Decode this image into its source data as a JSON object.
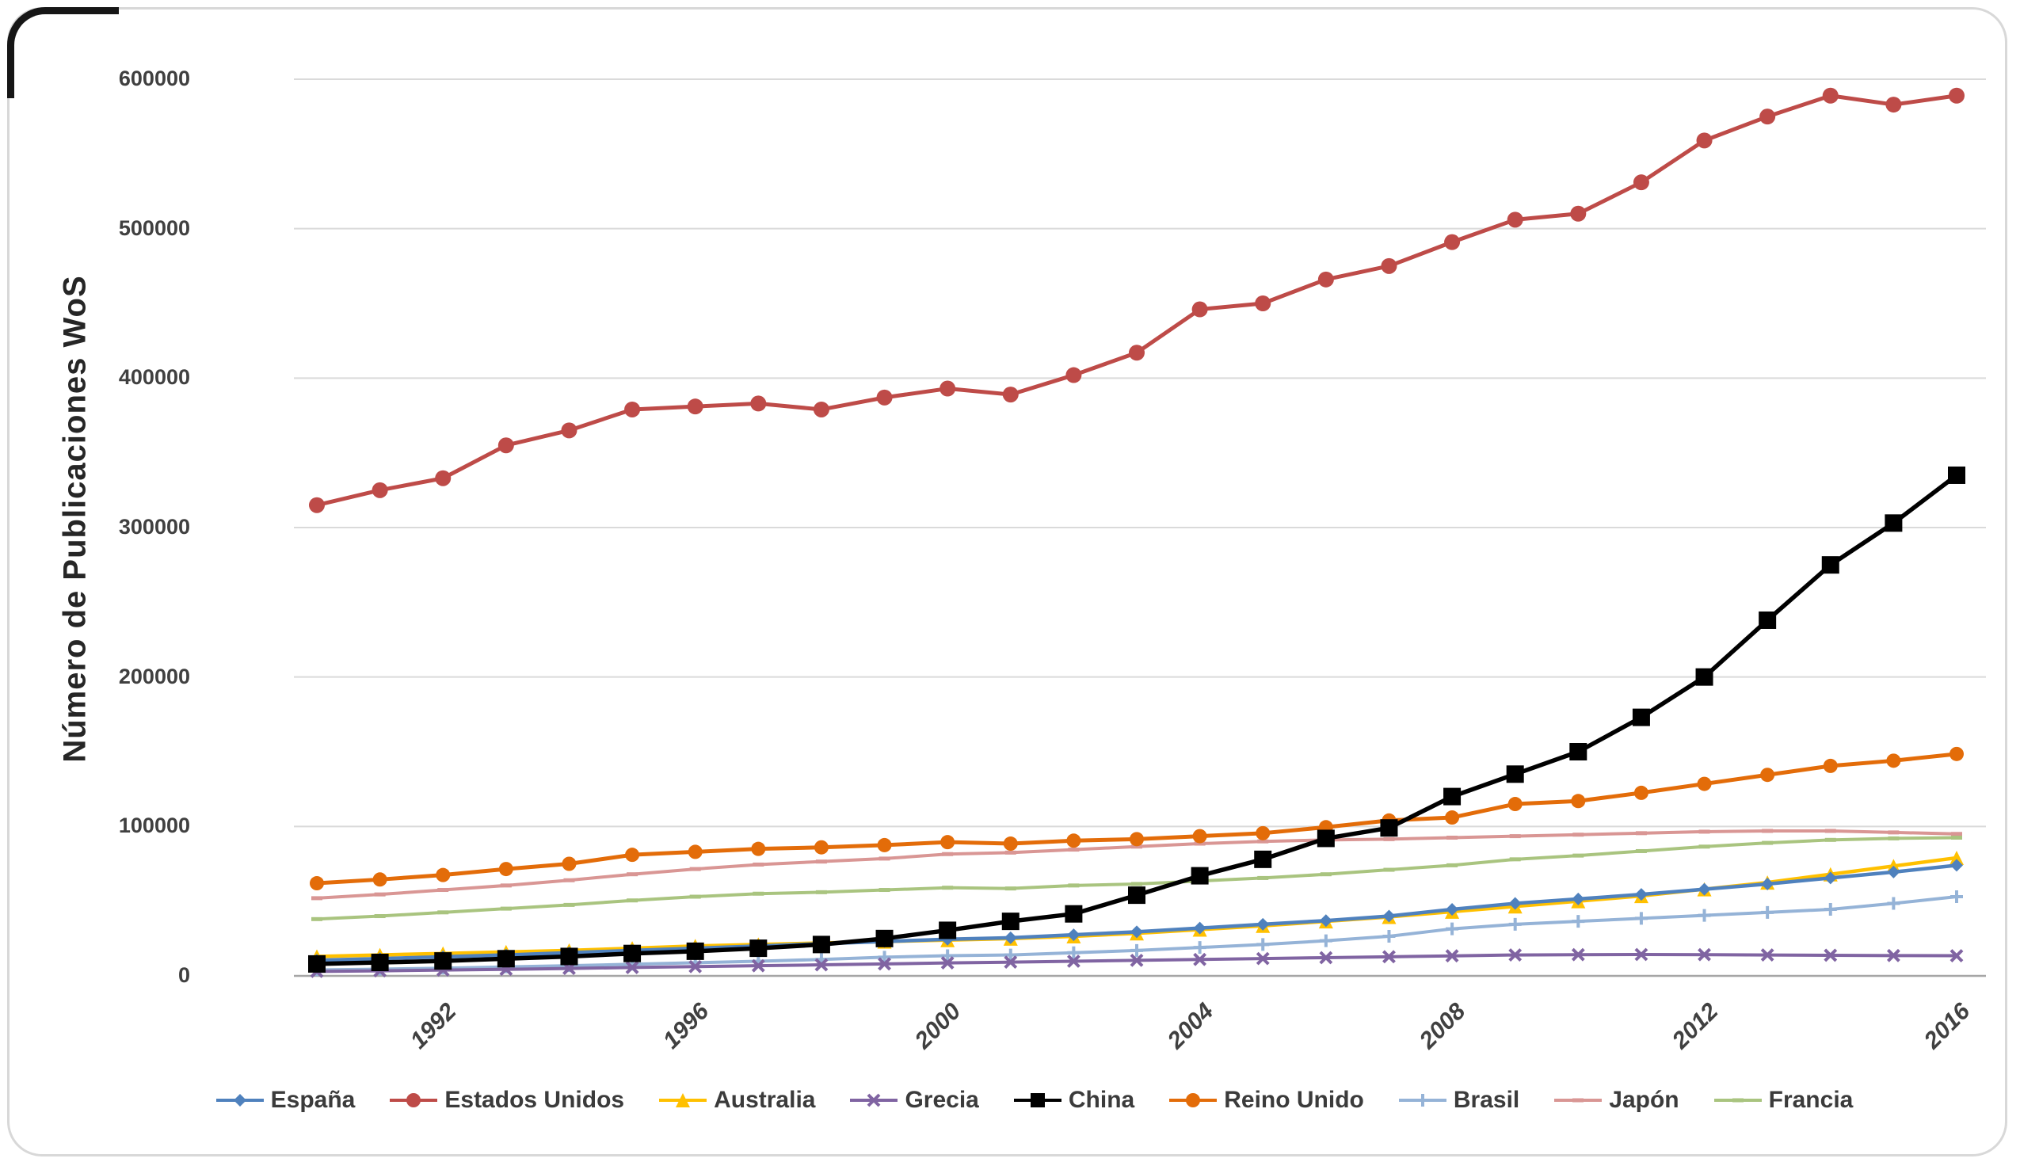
{
  "chart_data": {
    "type": "line",
    "title": "",
    "xlabel": "",
    "ylabel": "Número de Publicaciones WoS",
    "ylim": [
      0,
      600000
    ],
    "y_ticks": [
      "0",
      "100000",
      "200000",
      "300000",
      "400000",
      "500000",
      "600000"
    ],
    "x": [
      1990,
      1991,
      1992,
      1993,
      1994,
      1995,
      1996,
      1997,
      1998,
      1999,
      2000,
      2001,
      2002,
      2003,
      2004,
      2005,
      2006,
      2007,
      2008,
      2009,
      2010,
      2011,
      2012,
      2013,
      2014,
      2015,
      2016
    ],
    "x_ticks": [
      "1992",
      "1996",
      "2000",
      "2004",
      "2008",
      "2012",
      "2016"
    ],
    "grid": "horizontal",
    "legend_position": "bottom",
    "grid_color": "#dadada",
    "axis_color": "#a6a6a6",
    "series": [
      {
        "name": "España",
        "color": "#4F81BD",
        "marker": "diamond",
        "marker_size": 8,
        "line_width": 4.5,
        "values": [
          10500,
          11500,
          12800,
          14000,
          15500,
          17000,
          18500,
          20000,
          21500,
          23000,
          24500,
          25500,
          27500,
          29500,
          32000,
          34500,
          37000,
          40000,
          44500,
          48500,
          51500,
          54500,
          58000,
          61500,
          65500,
          69500,
          74000
        ]
      },
      {
        "name": "Estados Unidos",
        "color": "#BE4B48",
        "marker": "circle",
        "marker_size": 10,
        "line_width": 5,
        "values": [
          315000,
          325000,
          333000,
          355000,
          365000,
          379000,
          381000,
          383000,
          379000,
          387000,
          393000,
          389000,
          402000,
          417000,
          446000,
          450000,
          466000,
          475000,
          491000,
          506000,
          510000,
          531000,
          559000,
          575000,
          589000,
          583000,
          589000
        ]
      },
      {
        "name": "Australia",
        "color": "#FFC000",
        "marker": "triangle",
        "marker_size": 9,
        "line_width": 4.5,
        "values": [
          13000,
          14000,
          15000,
          16000,
          17000,
          18500,
          20000,
          21000,
          22000,
          23000,
          24000,
          25000,
          26500,
          28500,
          31000,
          33500,
          36500,
          39500,
          43000,
          46500,
          50000,
          53500,
          58000,
          62500,
          68000,
          73500,
          79000
        ]
      },
      {
        "name": "Grecia",
        "color": "#8064A2",
        "marker": "x",
        "marker_size": 7,
        "line_width": 4,
        "values": [
          3000,
          3400,
          3900,
          4400,
          5000,
          5600,
          6200,
          6800,
          7400,
          8000,
          8700,
          9200,
          9800,
          10400,
          11000,
          11600,
          12200,
          12800,
          13400,
          14000,
          14200,
          14300,
          14200,
          14000,
          13800,
          13600,
          13500
        ]
      },
      {
        "name": "China",
        "color": "#000000",
        "marker": "square",
        "marker_size": 11,
        "line_width": 5.5,
        "values": [
          8000,
          9000,
          10000,
          11500,
          13000,
          15000,
          16500,
          18500,
          21000,
          25000,
          30500,
          36500,
          41500,
          54000,
          67000,
          78000,
          92000,
          99000,
          120000,
          135000,
          150000,
          173000,
          200000,
          238000,
          275000,
          303000,
          335000
        ]
      },
      {
        "name": "Reino Unido",
        "color": "#E36C09",
        "marker": "circle",
        "marker_size": 9,
        "line_width": 5,
        "values": [
          62000,
          64500,
          67500,
          71500,
          75000,
          81000,
          83000,
          85000,
          86000,
          87500,
          89500,
          88500,
          90500,
          91500,
          93500,
          95500,
          99500,
          104000,
          106000,
          115000,
          117000,
          122500,
          128500,
          134500,
          140500,
          144000,
          148500
        ]
      },
      {
        "name": "Brasil",
        "color": "#95B3D7",
        "marker": "plus",
        "marker_size": 8,
        "line_width": 4,
        "values": [
          4000,
          4500,
          5200,
          6000,
          6800,
          7800,
          8800,
          9800,
          11000,
          12500,
          13500,
          14000,
          15500,
          17000,
          19000,
          21000,
          23500,
          26500,
          31500,
          34500,
          36500,
          38500,
          40500,
          42500,
          44500,
          48500,
          53000
        ]
      },
      {
        "name": "Japón",
        "color": "#D99694",
        "marker": "dash",
        "marker_size": 7,
        "line_width": 4,
        "values": [
          52000,
          54500,
          57500,
          60500,
          64000,
          68000,
          71500,
          74500,
          76500,
          78500,
          81500,
          82500,
          84500,
          86500,
          88500,
          90000,
          91000,
          91500,
          92500,
          93500,
          94500,
          95500,
          96500,
          97000,
          97000,
          96000,
          95000
        ]
      },
      {
        "name": "Francia",
        "color": "#A9C47F",
        "marker": "dash",
        "marker_size": 7,
        "line_width": 4,
        "values": [
          38000,
          40000,
          42500,
          45000,
          47500,
          50500,
          53000,
          55000,
          56000,
          57500,
          59000,
          58500,
          60500,
          61500,
          63500,
          65500,
          68000,
          71000,
          74000,
          78000,
          80500,
          83500,
          86500,
          89000,
          91000,
          92000,
          92500
        ]
      }
    ],
    "draw_order": [
      "Japón",
      "Francia",
      "Brasil",
      "Grecia",
      "Australia",
      "España",
      "Reino Unido",
      "Estados Unidos",
      "China"
    ]
  }
}
